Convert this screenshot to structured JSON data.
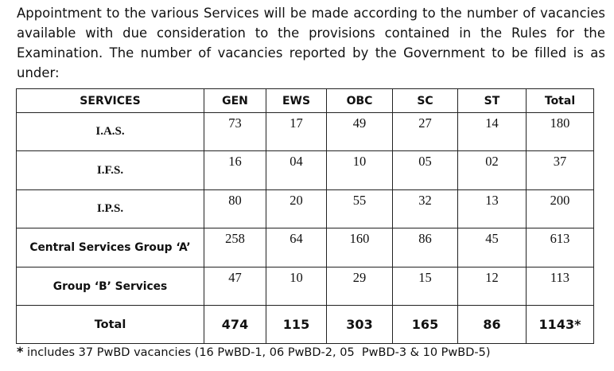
{
  "intro_text": "Appointment to the various Services will be made according to the number of vacancies available with due consideration to the provisions contained in  the Rules for the Examination. The number of vacancies reported by the Government to be filled is as under:",
  "table": {
    "headers": [
      "SERVICES",
      "GEN",
      "EWS",
      "OBC",
      "SC",
      "ST",
      "Total"
    ],
    "rows": [
      {
        "service": "I.A.S.",
        "values": [
          "73",
          "17",
          "49",
          "27",
          "14",
          "180"
        ]
      },
      {
        "service": "I.F.S.",
        "values": [
          "16",
          "04",
          "10",
          "05",
          "02",
          "37"
        ]
      },
      {
        "service": "I.P.S.",
        "values": [
          "80",
          "20",
          "55",
          "32",
          "13",
          "200"
        ]
      },
      {
        "service": "Central Services Group ‘A’",
        "values": [
          "258",
          "64",
          "160",
          "86",
          "45",
          "613"
        ]
      },
      {
        "service": "Group ‘B’ Services",
        "values": [
          "47",
          "10",
          "29",
          "15",
          "12",
          "113"
        ]
      }
    ],
    "total": {
      "service": "Total",
      "values": [
        "474",
        "115",
        "303",
        "165",
        "86",
        "1143*"
      ]
    }
  },
  "footnote": {
    "marker": "*",
    "text": " includes 37 PwBD vacancies (16 PwBD-1, 06 PwBD-2, 05  PwBD-3 & 10 PwBD-5)"
  }
}
